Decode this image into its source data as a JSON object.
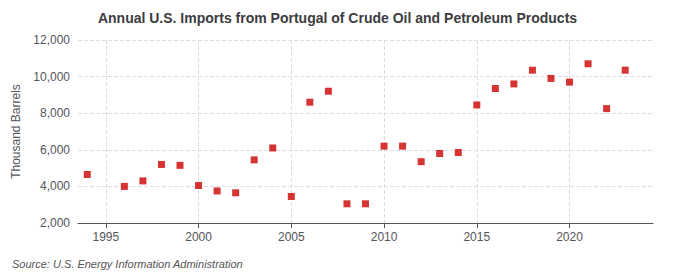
{
  "chart_data": {
    "type": "scatter",
    "title": "Annual U.S. Imports from Portugal of Crude Oil and Petroleum Products",
    "ylabel": "Thousand Barrels",
    "annotations": [
      "Source: U.S. Energy Information Administration"
    ],
    "x": [
      1994,
      1996,
      1997,
      1998,
      1999,
      2000,
      2001,
      2002,
      2003,
      2004,
      2005,
      2006,
      2007,
      2008,
      2009,
      2010,
      2011,
      2012,
      2013,
      2014,
      2015,
      2016,
      2017,
      2018,
      2019,
      2020,
      2021,
      2022,
      2023
    ],
    "values": [
      4650,
      4000,
      4300,
      5200,
      5150,
      4050,
      3750,
      3650,
      5450,
      6100,
      3450,
      8600,
      9200,
      3050,
      3050,
      6200,
      6200,
      5350,
      5800,
      5850,
      8450,
      9350,
      9600,
      10350,
      9900,
      9700,
      10700,
      8250,
      10350
    ],
    "color": "#cc0000",
    "marker": "square",
    "xlim": [
      1993.5,
      2024.5
    ],
    "xticks": [
      1995,
      2000,
      2005,
      2010,
      2015,
      2020
    ],
    "ylim": [
      2000,
      12000
    ],
    "yticks": [
      {
        "value": 2000,
        "label": "2,000"
      },
      {
        "value": 4000,
        "label": "4,000"
      },
      {
        "value": 6000,
        "label": "6,000"
      },
      {
        "value": 8000,
        "label": "8,000"
      },
      {
        "value": 10000,
        "label": "10,000"
      },
      {
        "value": 12000,
        "label": "12,000"
      }
    ],
    "grid": true
  }
}
